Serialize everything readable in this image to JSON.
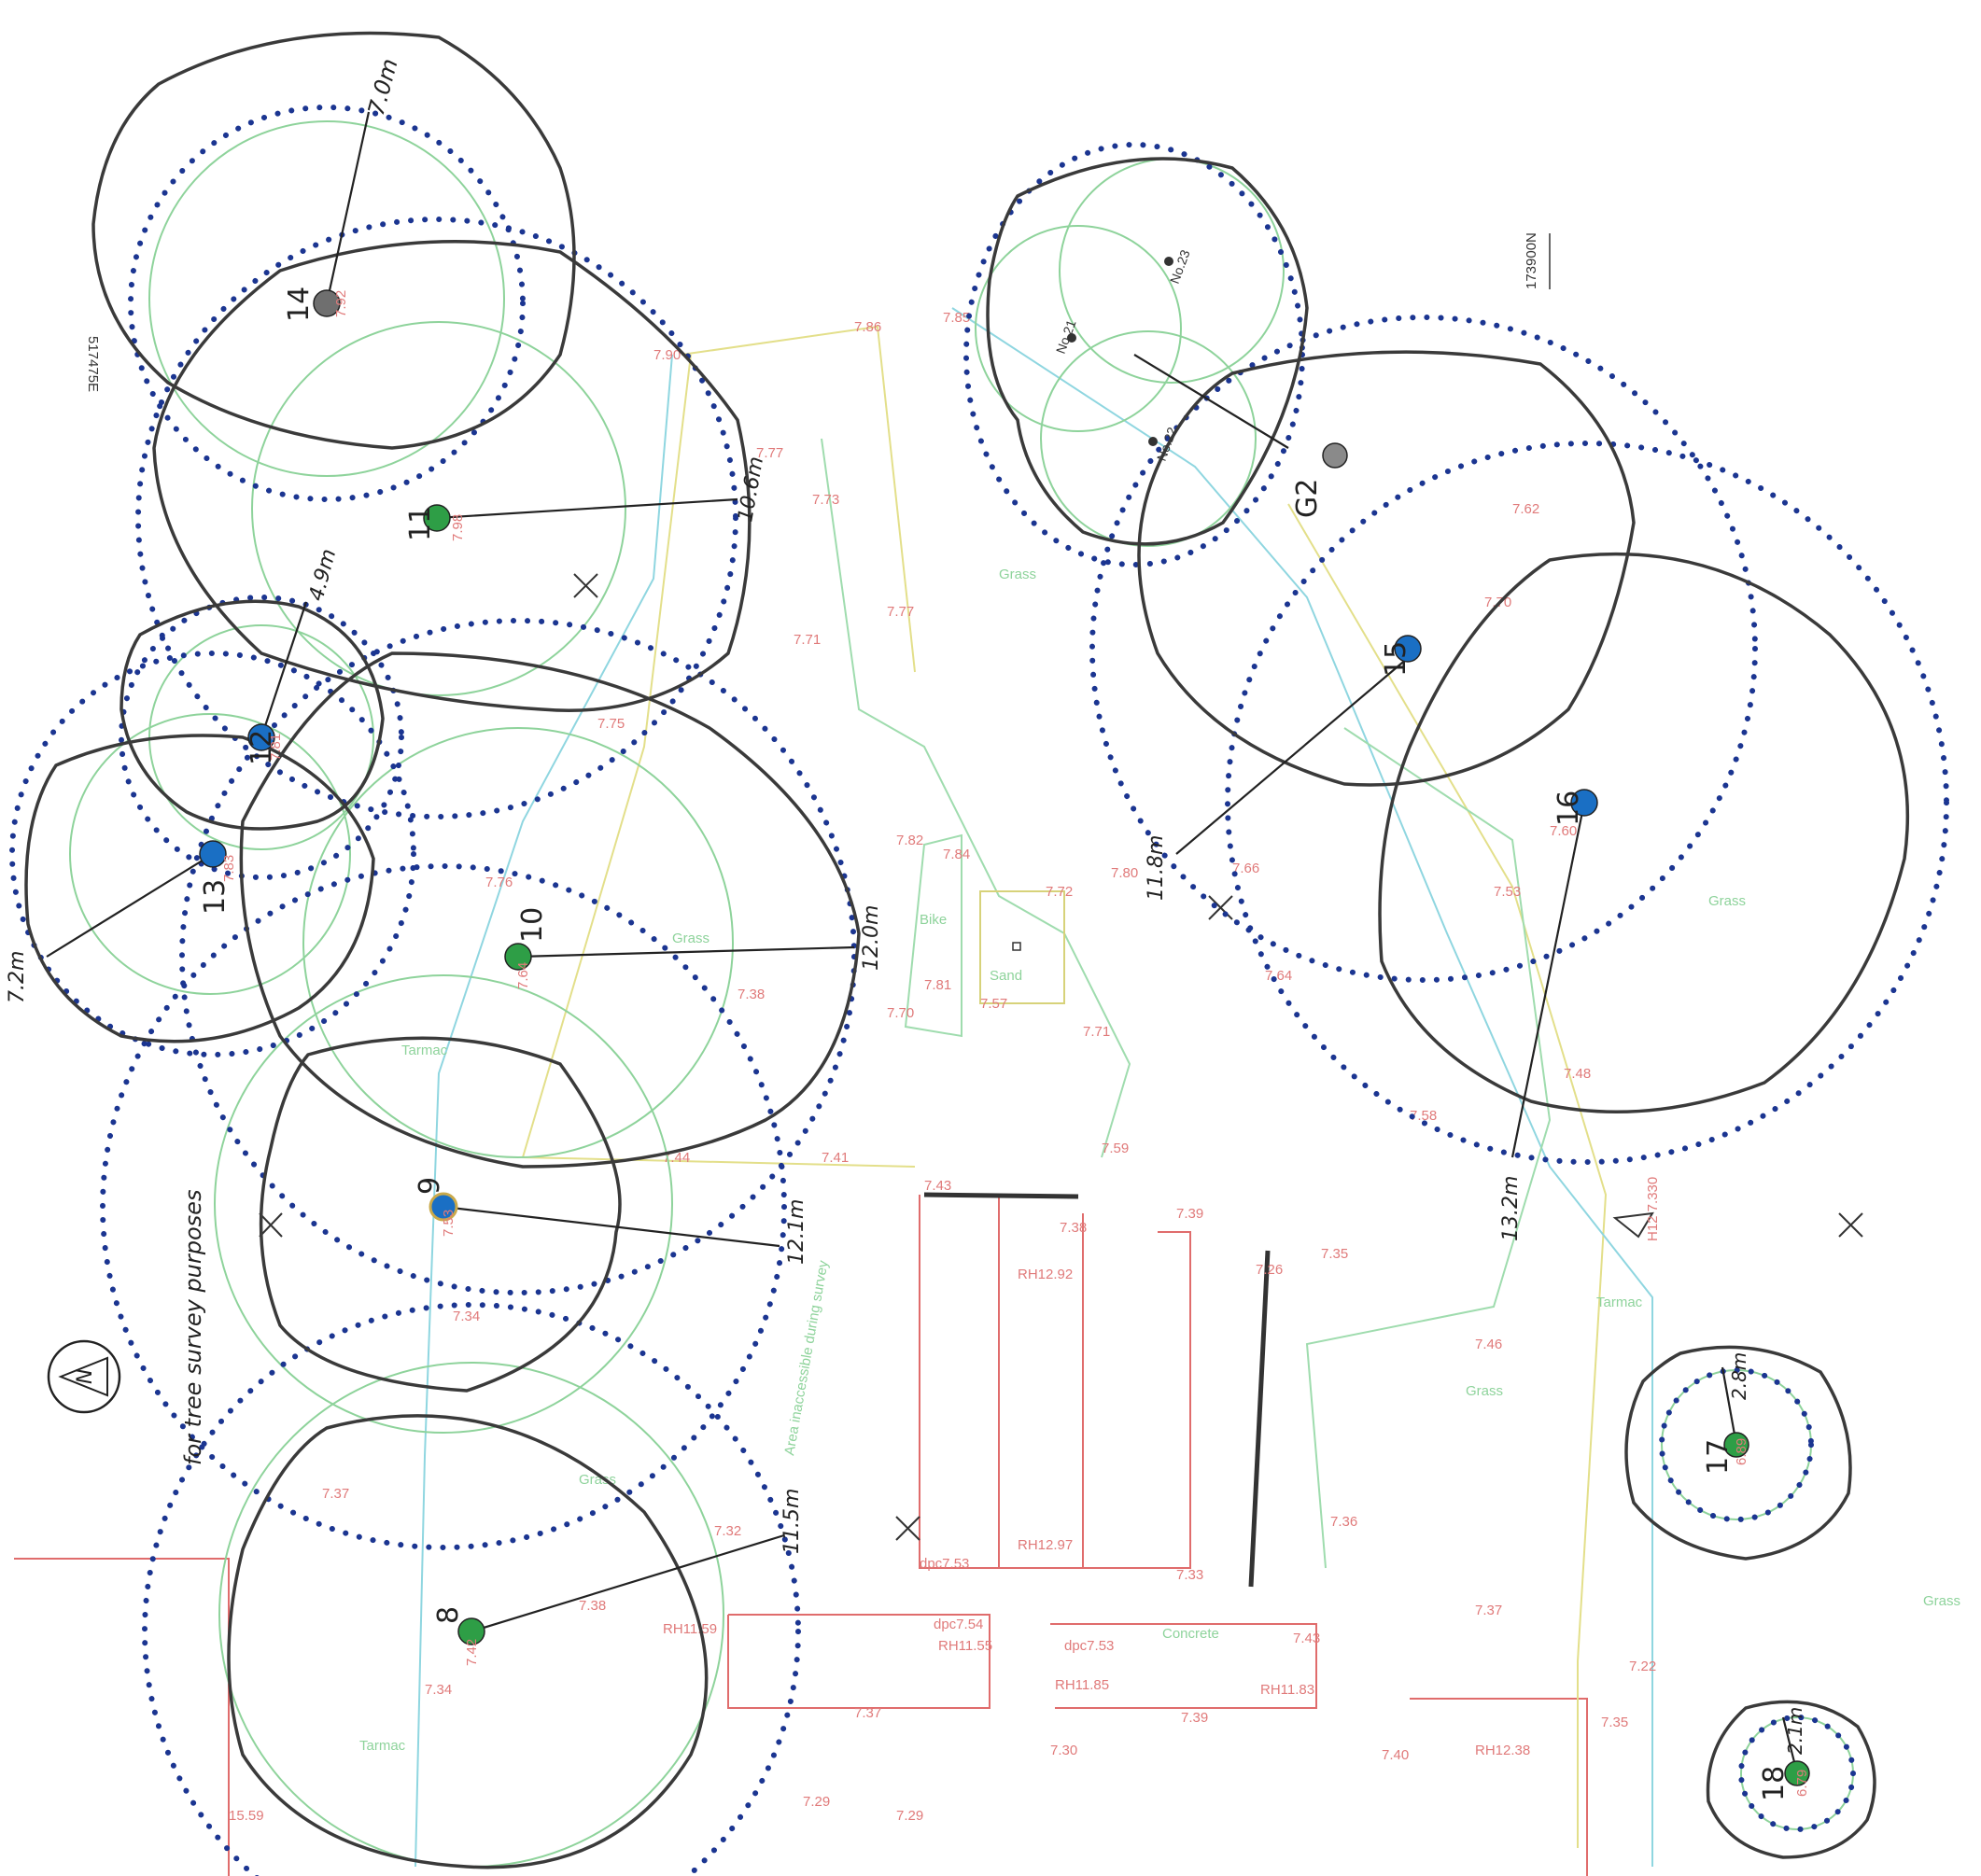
{
  "grid": {
    "easting": "517475E",
    "northing": "173900N"
  },
  "north_note": "for tree survey purposes",
  "north_letter": "N",
  "colors": {
    "green_tree": "#2e9e46",
    "blue_tree": "#1a6fc4",
    "grey_tree": "#6f6f6f",
    "rpa": "#1b3591"
  },
  "trees": [
    {
      "id": "8",
      "radius_label": "11.5m",
      "level": "7.42",
      "type": "green"
    },
    {
      "id": "9",
      "radius_label": "12.1m",
      "level": "7.53",
      "type": "blue"
    },
    {
      "id": "10",
      "radius_label": "12.0m",
      "level": "7.64",
      "type": "green"
    },
    {
      "id": "11",
      "radius_label": "10.6m",
      "level": "7.98",
      "type": "green"
    },
    {
      "id": "12",
      "radius_label": "4.9m",
      "level": "7.81",
      "type": "blue"
    },
    {
      "id": "13",
      "radius_label": "7.2m",
      "level": "7.83",
      "type": "blue"
    },
    {
      "id": "14",
      "radius_label": "7.0m",
      "level": "7.92",
      "type": "grey"
    },
    {
      "id": "15",
      "radius_label": "11.8m",
      "level": "",
      "type": "blue"
    },
    {
      "id": "16",
      "radius_label": "13.2m",
      "level": "",
      "type": "blue"
    },
    {
      "id": "17",
      "radius_label": "2.8m",
      "level": "6.89",
      "type": "green"
    },
    {
      "id": "18",
      "radius_label": "2.1m",
      "level": "6.79",
      "type": "green"
    }
  ],
  "group": {
    "id": "G2",
    "radius_label": ""
  },
  "neighbour_trees": [
    "No.21",
    "No.22",
    "No.23"
  ],
  "areas": {
    "sand": "Sand",
    "bike": "Bike",
    "grass": "Grass",
    "tarmac": "Tarmac",
    "concrete": "Concrete",
    "inaccessible": "Area inaccessible during survey"
  },
  "building_levels": [
    "RH12.92",
    "RH12.97",
    "RH11.59",
    "RH11.55",
    "RH11.85",
    "RH11.83",
    "RH12.38",
    "dpc7.53",
    "dpc7.54",
    "dpc7.53"
  ],
  "spot_levels": [
    "7.86",
    "7.85",
    "7.90",
    "7.77",
    "7.73",
    "7.71",
    "7.77",
    "7.76",
    "7.75",
    "7.82",
    "7.84",
    "7.72",
    "7.81",
    "7.70",
    "7.57",
    "7.71",
    "7.80",
    "7.38",
    "7.41",
    "7.43",
    "7.44",
    "7.38",
    "7.39",
    "7.35",
    "7.59",
    "7.26",
    "7.46",
    "7.36",
    "7.37",
    "7.33",
    "7.43",
    "7.39",
    "7.35",
    "7.40",
    "7.30",
    "7.29",
    "7.37",
    "7.34",
    "7.32",
    "7.38",
    "7.37",
    "7.34",
    "7.29",
    "7.22",
    "7.66",
    "7.64",
    "7.58",
    "7.48",
    "7.53",
    "7.60",
    "7.62",
    "7.70",
    "15.59"
  ],
  "station": "H12 7.330"
}
